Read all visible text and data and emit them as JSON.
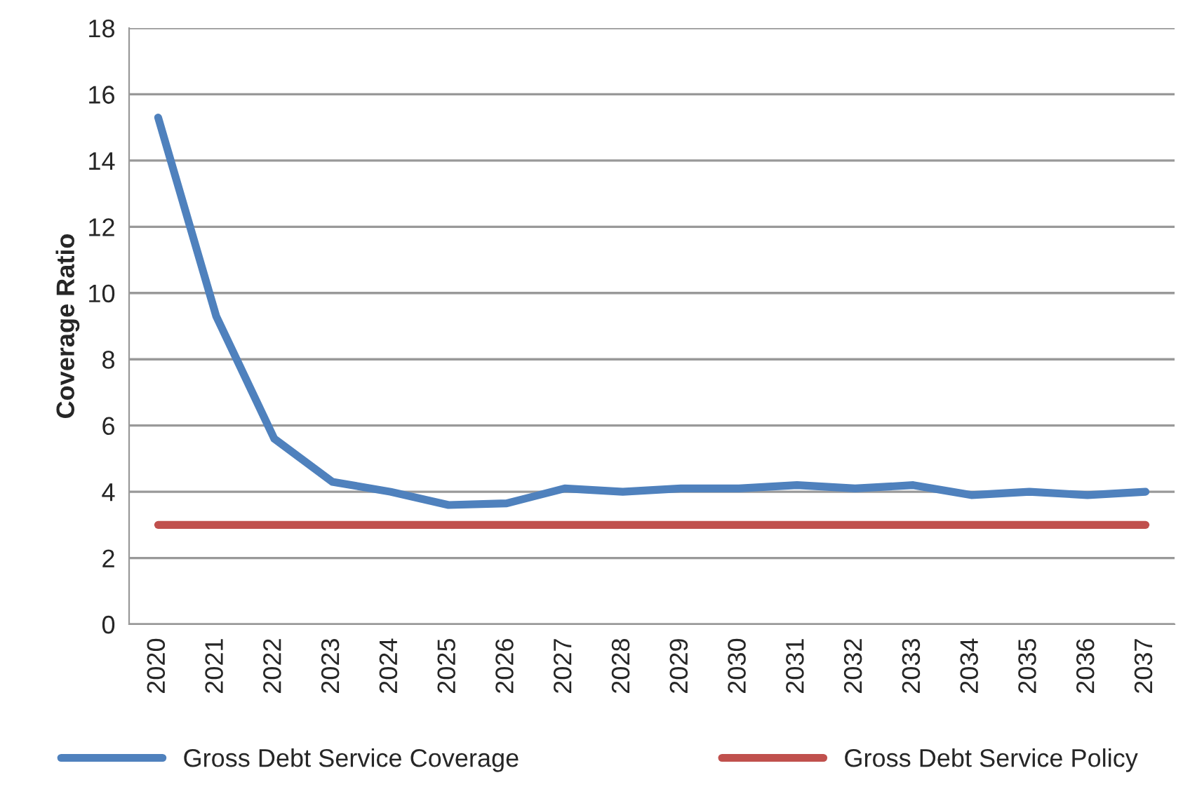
{
  "chart_data": {
    "type": "line",
    "ylabel": "Coverage Ratio",
    "categories": [
      "2020",
      "2021",
      "2022",
      "2023",
      "2024",
      "2025",
      "2026",
      "2027",
      "2028",
      "2029",
      "2030",
      "2031",
      "2032",
      "2033",
      "2034",
      "2035",
      "2036",
      "2037"
    ],
    "series": [
      {
        "name": "Gross Debt Service Coverage",
        "color": "#4f81bd",
        "values": [
          15.3,
          9.3,
          5.6,
          4.3,
          4.0,
          3.6,
          3.65,
          4.1,
          4.0,
          4.1,
          4.1,
          4.2,
          4.1,
          4.2,
          3.9,
          4.0,
          3.9,
          4.0
        ]
      },
      {
        "name": "Gross Debt Service Policy",
        "color": "#c0504d",
        "values": [
          3,
          3,
          3,
          3,
          3,
          3,
          3,
          3,
          3,
          3,
          3,
          3,
          3,
          3,
          3,
          3,
          3,
          3
        ]
      }
    ],
    "ylim": [
      0,
      18
    ],
    "yticks": [
      0,
      2,
      4,
      6,
      8,
      10,
      12,
      14,
      16,
      18
    ],
    "grid": "y",
    "legend": "bottom",
    "marker": "none",
    "line_style": "solid"
  }
}
